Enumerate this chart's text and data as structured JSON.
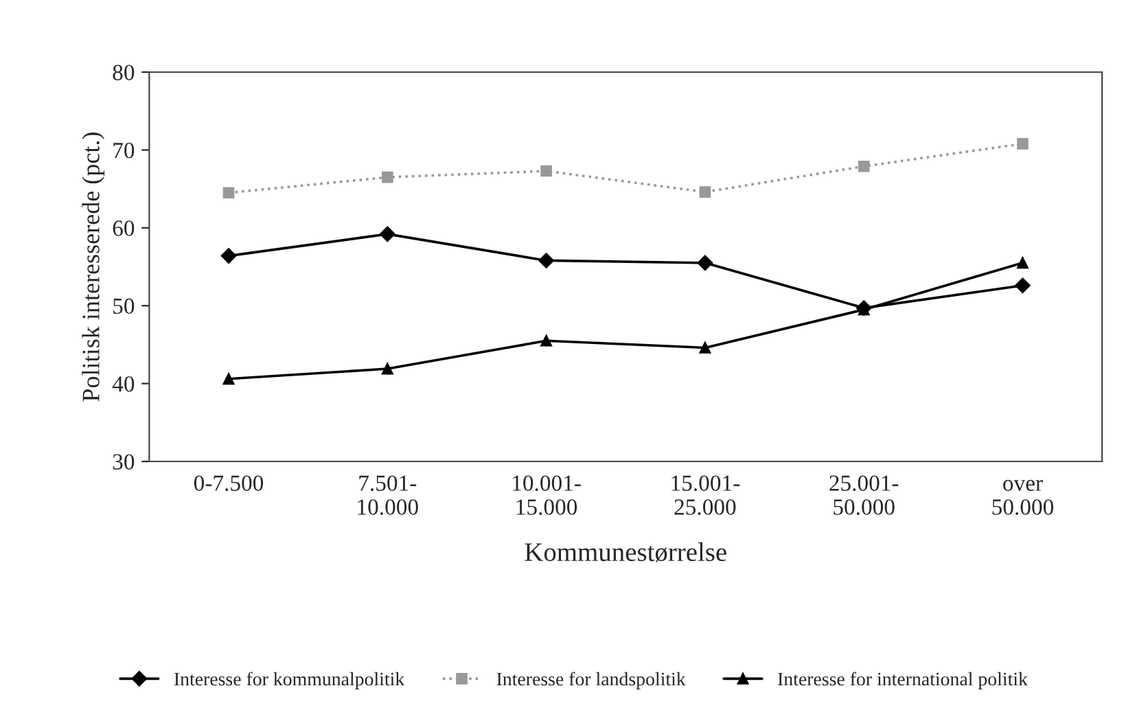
{
  "chart_data": {
    "type": "line",
    "ylabel": "Politisk interesserede (pct.)",
    "xlabel": "Kommunestørrelse",
    "categories": [
      "0-7.500",
      "7.501-\n10.000",
      "10.001-\n15.000",
      "15.001-\n25.000",
      "25.001-\n50.000",
      "over\n50.000"
    ],
    "series": [
      {
        "name": "Interesse for kommunalpolitik",
        "color": "#000000",
        "marker": "diamond",
        "line_style": "solid",
        "values": [
          56.4,
          59.2,
          55.8,
          55.5,
          49.7,
          52.6
        ]
      },
      {
        "name": "Interesse for landspolitik",
        "color": "#999999",
        "marker": "square",
        "line_style": "dotted",
        "values": [
          64.5,
          66.5,
          67.3,
          64.6,
          67.9,
          70.8
        ]
      },
      {
        "name": "Interesse for international politik",
        "color": "#000000",
        "marker": "triangle",
        "line_style": "solid",
        "values": [
          40.6,
          41.9,
          45.5,
          44.6,
          49.5,
          55.5
        ]
      }
    ],
    "ylim": [
      30,
      80
    ],
    "yticks": [
      30,
      40,
      50,
      60,
      70,
      80
    ],
    "grid": false,
    "legend": "bottom"
  }
}
